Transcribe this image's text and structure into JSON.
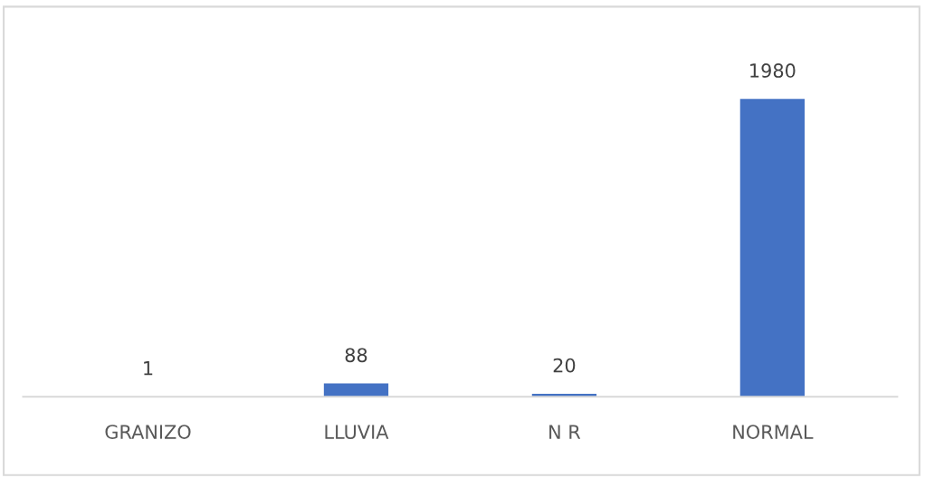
{
  "chart_data": {
    "type": "bar",
    "categories": [
      "GRANIZO",
      "LLUVIA",
      "N R",
      "NORMAL"
    ],
    "values": [
      1,
      88,
      20,
      1980
    ],
    "color": "#4472c4",
    "data_labels": true,
    "grid": false,
    "legend": false
  }
}
